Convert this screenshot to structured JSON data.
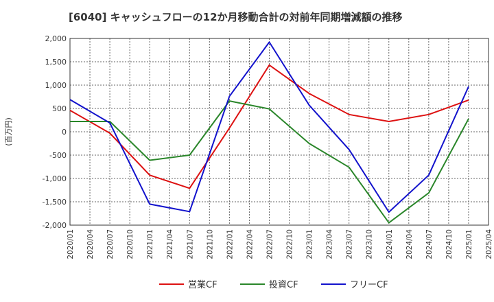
{
  "chart_data": {
    "type": "line",
    "title": "[6040]  キャッシュフローの12か月移動合計の対前年同期増減額の推移",
    "ylabel": "(百万円)",
    "xlabel": "",
    "ylim": [
      -2000,
      2000
    ],
    "yticks": [
      2000,
      1500,
      1000,
      500,
      0,
      -500,
      -1000,
      -1500,
      -2000
    ],
    "ytick_labels": [
      "2,000",
      "1,500",
      "1,000",
      "500",
      "0",
      "-500",
      "-1,000",
      "-1,500",
      "-2,000"
    ],
    "x": [
      "2020/01",
      "2020/04",
      "2020/07",
      "2020/10",
      "2021/01",
      "2021/04",
      "2021/07",
      "2021/10",
      "2022/01",
      "2022/04",
      "2022/07",
      "2022/10",
      "2023/01",
      "2023/04",
      "2023/07",
      "2023/10",
      "2024/01",
      "2024/04",
      "2024/07",
      "2024/10",
      "2025/01",
      "2025/04"
    ],
    "grid": true,
    "legend_position": "bottom",
    "series": [
      {
        "name": "営業CF",
        "color": "#dd1111",
        "points": [
          [
            "2020/01",
            460
          ],
          [
            "2020/07",
            -30
          ],
          [
            "2021/01",
            -930
          ],
          [
            "2021/07",
            -1210
          ],
          [
            "2022/01",
            80
          ],
          [
            "2022/07",
            1430
          ],
          [
            "2023/01",
            820
          ],
          [
            "2023/07",
            370
          ],
          [
            "2024/01",
            220
          ],
          [
            "2024/07",
            370
          ],
          [
            "2025/01",
            680
          ]
        ]
      },
      {
        "name": "投資CF",
        "color": "#2a862a",
        "points": [
          [
            "2020/01",
            220
          ],
          [
            "2020/07",
            220
          ],
          [
            "2021/01",
            -610
          ],
          [
            "2021/07",
            -500
          ],
          [
            "2022/01",
            660
          ],
          [
            "2022/07",
            490
          ],
          [
            "2023/01",
            -250
          ],
          [
            "2023/07",
            -760
          ],
          [
            "2024/01",
            -1950
          ],
          [
            "2024/07",
            -1310
          ],
          [
            "2025/01",
            280
          ]
        ]
      },
      {
        "name": "フリーCF",
        "color": "#1212cc",
        "points": [
          [
            "2020/01",
            690
          ],
          [
            "2020/07",
            190
          ],
          [
            "2021/01",
            -1550
          ],
          [
            "2021/07",
            -1710
          ],
          [
            "2022/01",
            760
          ],
          [
            "2022/07",
            1920
          ],
          [
            "2023/01",
            570
          ],
          [
            "2023/07",
            -380
          ],
          [
            "2024/01",
            -1720
          ],
          [
            "2024/07",
            -930
          ],
          [
            "2025/01",
            970
          ]
        ]
      }
    ]
  }
}
